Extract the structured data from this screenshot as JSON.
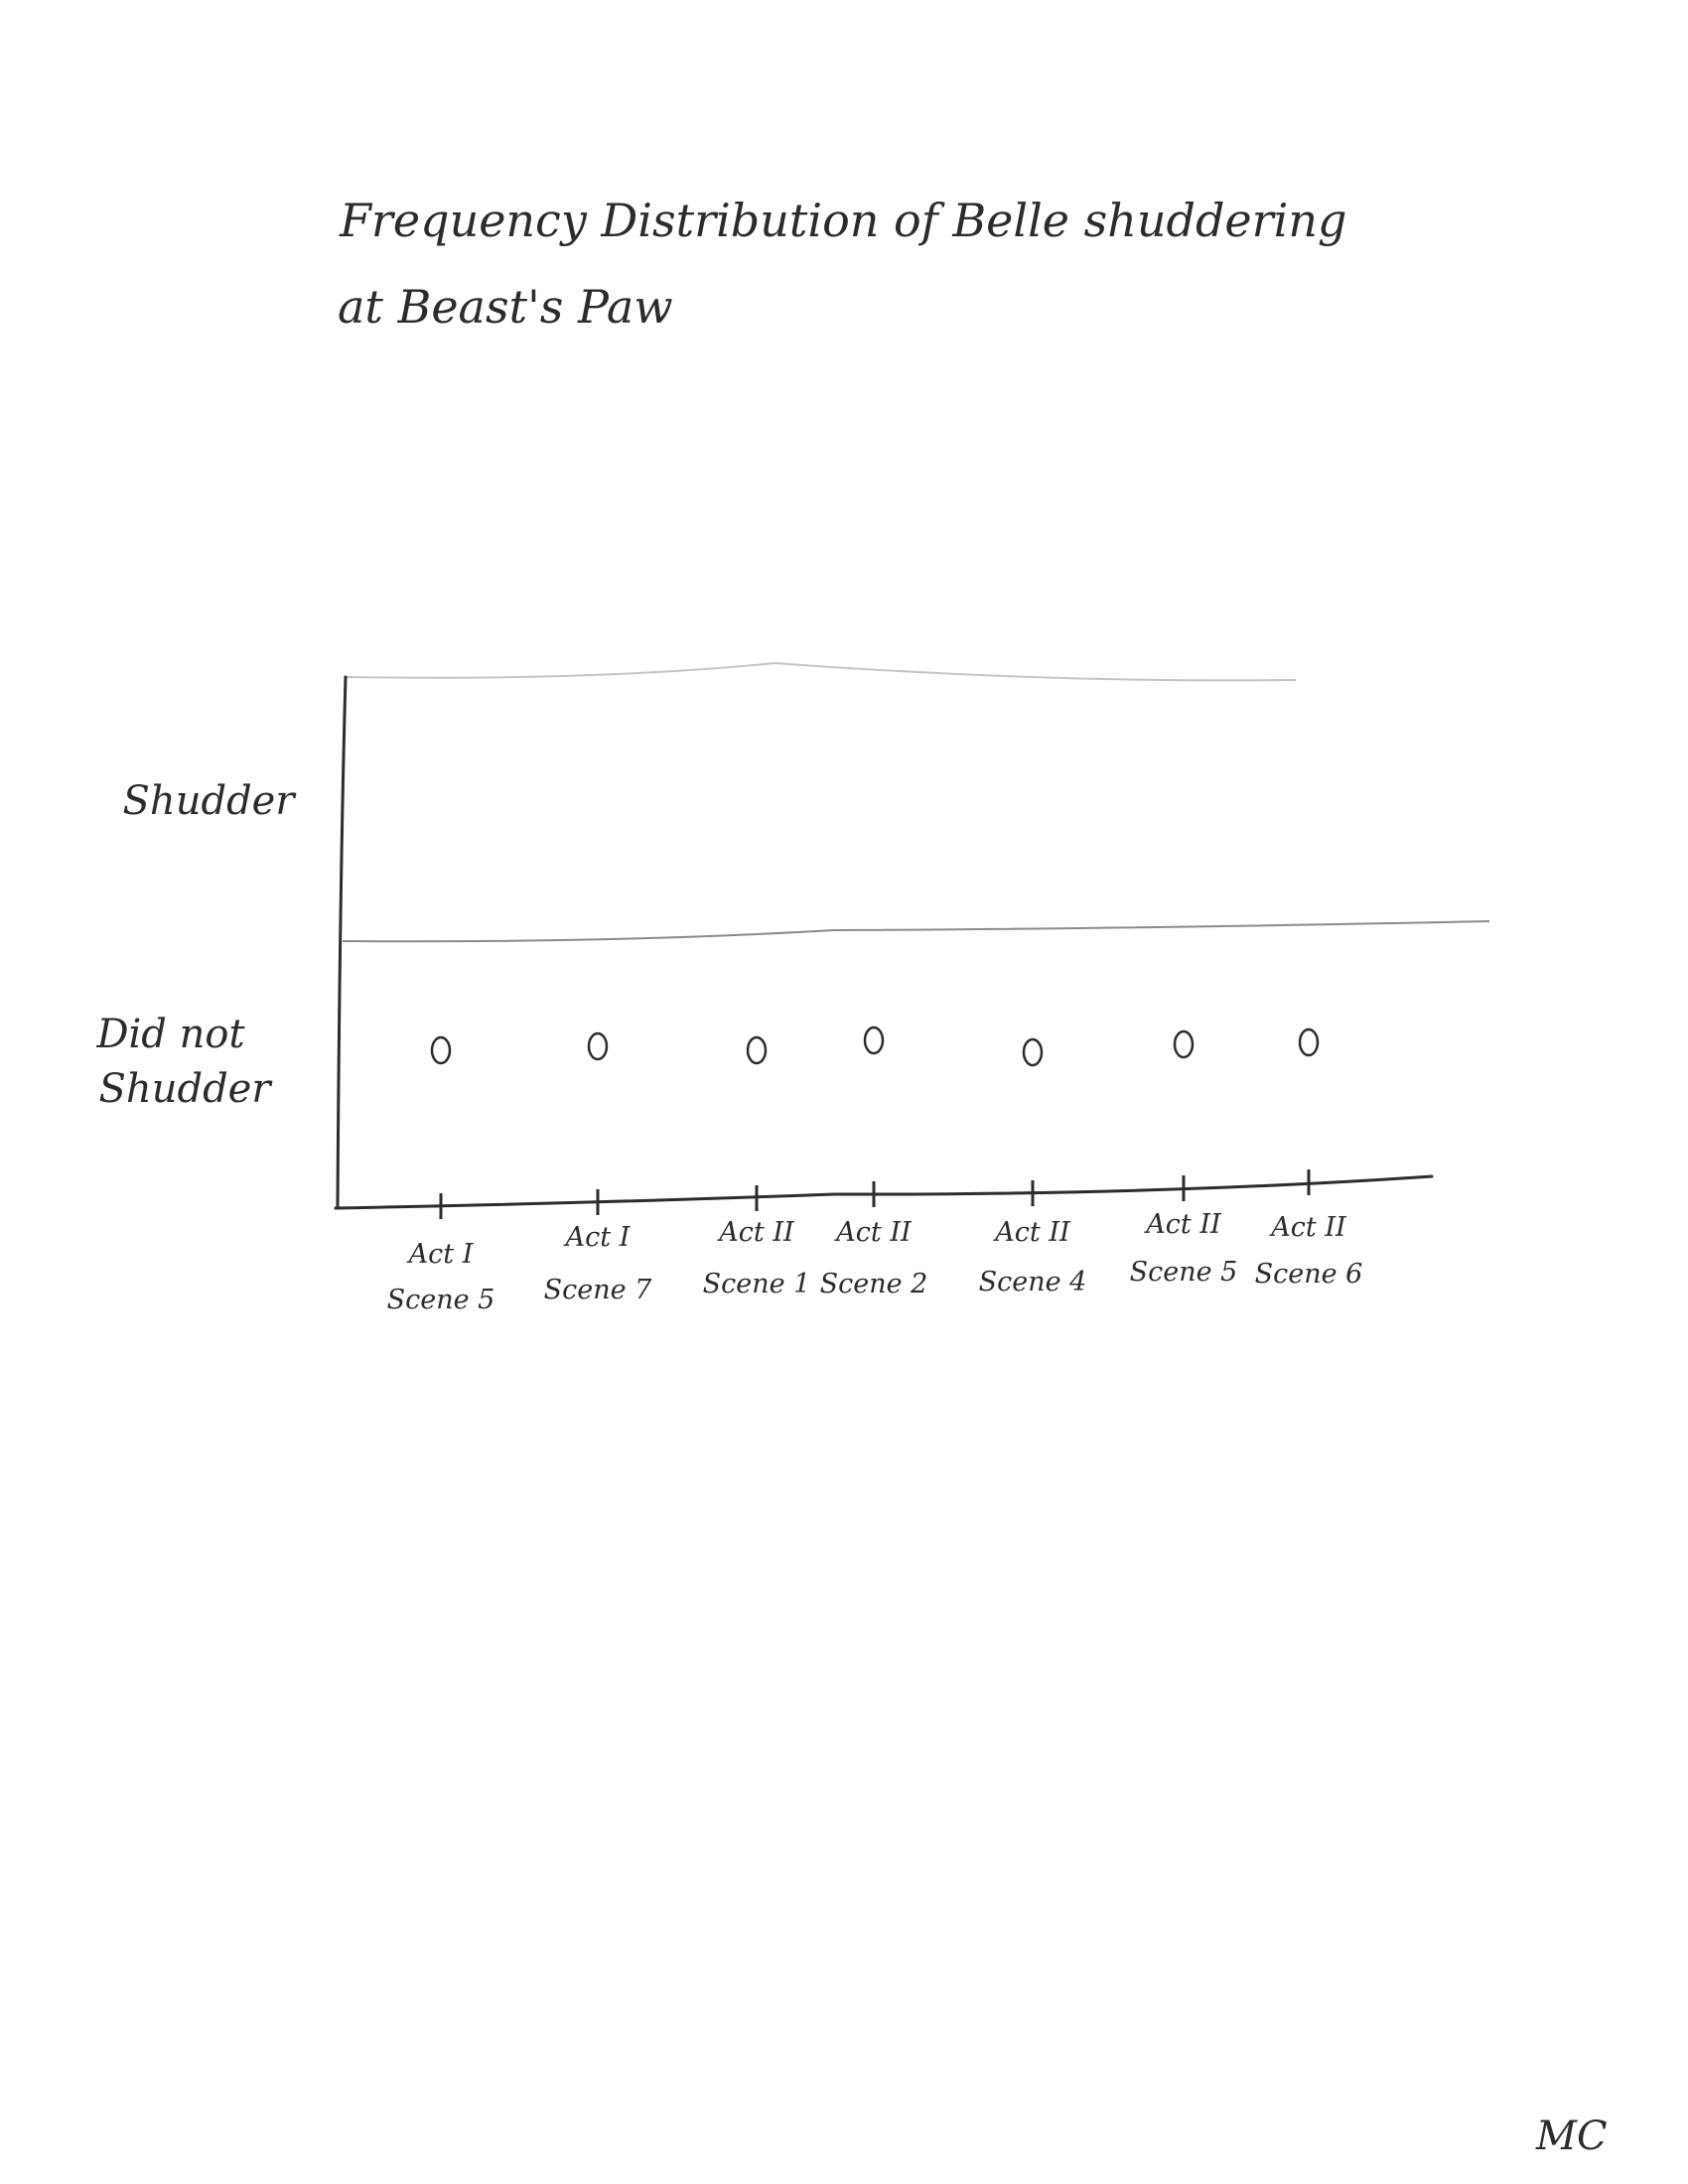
{
  "chart_data": {
    "type": "scatter",
    "title": "Frequency Distribution of Belle shuddering at Beast's Paw",
    "title_lines": [
      "Frequency Distribution of Belle shuddering",
      "at Beast's Paw"
    ],
    "categories": [
      {
        "line1": "Act I",
        "line2": "Scene 5"
      },
      {
        "line1": "Act I",
        "line2": "Scene 7"
      },
      {
        "line1": "Act II",
        "line2": "Scene 1"
      },
      {
        "line1": "Act II",
        "line2": "Scene 2"
      },
      {
        "line1": "Act II",
        "line2": "Scene 4"
      },
      {
        "line1": "Act II",
        "line2": "Scene 5"
      },
      {
        "line1": "Act II",
        "line2": "Scene 6"
      }
    ],
    "y_categories": [
      {
        "lines": [
          "Shudder"
        ]
      },
      {
        "lines": [
          "Did not",
          "Shudder"
        ]
      }
    ],
    "points": [
      {
        "x": 0,
        "y": "Did not Shudder"
      },
      {
        "x": 1,
        "y": "Did not Shudder"
      },
      {
        "x": 2,
        "y": "Did not Shudder"
      },
      {
        "x": 3,
        "y": "Did not Shudder"
      },
      {
        "x": 4,
        "y": "Did not Shudder"
      },
      {
        "x": 5,
        "y": "Did not Shudder"
      },
      {
        "x": 6,
        "y": "Did not Shudder"
      }
    ],
    "marker": "open-circle",
    "grid": false,
    "legend": "none"
  },
  "initials": "MC"
}
